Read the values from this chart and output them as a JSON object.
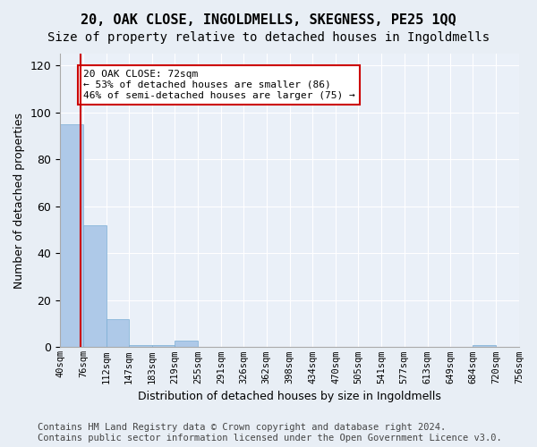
{
  "title": "20, OAK CLOSE, INGOLDMELLS, SKEGNESS, PE25 1QQ",
  "subtitle": "Size of property relative to detached houses in Ingoldmells",
  "xlabel": "Distribution of detached houses by size in Ingoldmells",
  "ylabel": "Number of detached properties",
  "bin_labels": [
    "40sqm",
    "76sqm",
    "112sqm",
    "147sqm",
    "183sqm",
    "219sqm",
    "255sqm",
    "291sqm",
    "326sqm",
    "362sqm",
    "398sqm",
    "434sqm",
    "470sqm",
    "505sqm",
    "541sqm",
    "577sqm",
    "613sqm",
    "649sqm",
    "684sqm",
    "720sqm",
    "756sqm"
  ],
  "bar_values": [
    95,
    52,
    12,
    1,
    1,
    3,
    0,
    0,
    0,
    0,
    0,
    0,
    0,
    0,
    0,
    0,
    0,
    0,
    1,
    0
  ],
  "bar_color": "#aec9e8",
  "bar_edge_color": "#7aadd4",
  "ylim": [
    0,
    125
  ],
  "yticks": [
    0,
    20,
    40,
    60,
    80,
    100,
    120
  ],
  "property_size": 72,
  "vline_color": "#cc0000",
  "annotation_text": "20 OAK CLOSE: 72sqm\n← 53% of detached houses are smaller (86)\n46% of semi-detached houses are larger (75) →",
  "annotation_box_edgecolor": "#cc0000",
  "annotation_box_facecolor": "#ffffff",
  "footer_text": "Contains HM Land Registry data © Crown copyright and database right 2024.\nContains public sector information licensed under the Open Government Licence v3.0.",
  "bg_color": "#e8eef5",
  "plot_bg_color": "#eaf0f8",
  "grid_color": "#ffffff",
  "title_fontsize": 11,
  "subtitle_fontsize": 10,
  "footer_fontsize": 7.5,
  "bin_edges": [
    40,
    76,
    112,
    147,
    183,
    219,
    255,
    291,
    326,
    362,
    398,
    434,
    470,
    505,
    541,
    577,
    613,
    649,
    684,
    720,
    756
  ]
}
